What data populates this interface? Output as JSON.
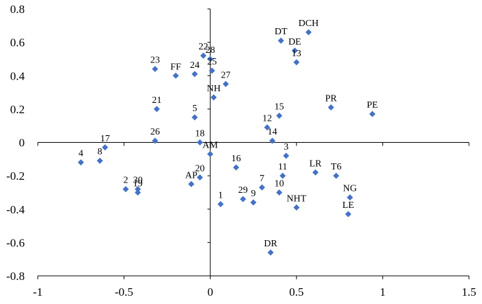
{
  "chart_data": {
    "type": "scatter",
    "title": "",
    "xlabel": "",
    "ylabel": "",
    "xlim": [
      -1,
      1.5
    ],
    "ylim": [
      -0.8,
      0.8
    ],
    "x_ticks": [
      -1,
      -0.5,
      0,
      0.5,
      1,
      1.5
    ],
    "x_tick_labels": [
      "-1",
      "-0.5",
      "0",
      "0.5",
      "1",
      "1.5"
    ],
    "y_ticks": [
      0.8,
      0.6,
      0.4,
      0.2,
      0,
      -0.2,
      -0.4,
      -0.6,
      -0.8
    ],
    "y_tick_labels": [
      "0.8",
      "0.6",
      "0.4",
      "0.2",
      "0",
      "-0.2",
      "-0.4",
      "-0.6",
      "-0.8"
    ],
    "grid": false,
    "legend": "none",
    "marker_color": "#4472C4",
    "points": [
      {
        "label": "DCH",
        "x": 0.57,
        "y": 0.66
      },
      {
        "label": "DT",
        "x": 0.41,
        "y": 0.61
      },
      {
        "label": "DE",
        "x": 0.49,
        "y": 0.55
      },
      {
        "label": "13",
        "x": 0.5,
        "y": 0.48
      },
      {
        "label": "22",
        "x": -0.04,
        "y": 0.52
      },
      {
        "label": "28",
        "x": 0.0,
        "y": 0.5
      },
      {
        "label": "24",
        "x": -0.09,
        "y": 0.41
      },
      {
        "label": "25",
        "x": 0.01,
        "y": 0.43
      },
      {
        "label": "23",
        "x": -0.32,
        "y": 0.44
      },
      {
        "label": "FF",
        "x": -0.2,
        "y": 0.4
      },
      {
        "label": "27",
        "x": 0.09,
        "y": 0.35
      },
      {
        "label": "NH",
        "x": 0.02,
        "y": 0.27
      },
      {
        "label": "21",
        "x": -0.31,
        "y": 0.2
      },
      {
        "label": "5",
        "x": -0.09,
        "y": 0.15
      },
      {
        "label": "15",
        "x": 0.4,
        "y": 0.16
      },
      {
        "label": "12",
        "x": 0.33,
        "y": 0.09
      },
      {
        "label": "PR",
        "x": 0.7,
        "y": 0.21
      },
      {
        "label": "PE",
        "x": 0.94,
        "y": 0.17
      },
      {
        "label": "17",
        "x": -0.61,
        "y": -0.03
      },
      {
        "label": "26",
        "x": -0.32,
        "y": 0.01
      },
      {
        "label": "18",
        "x": -0.06,
        "y": 0.0
      },
      {
        "label": "14",
        "x": 0.36,
        "y": 0.01
      },
      {
        "label": "AM",
        "x": 0.0,
        "y": -0.07
      },
      {
        "label": "3",
        "x": 0.44,
        "y": -0.08
      },
      {
        "label": "4",
        "x": -0.75,
        "y": -0.12
      },
      {
        "label": "8",
        "x": -0.64,
        "y": -0.11
      },
      {
        "label": "16",
        "x": 0.15,
        "y": -0.15
      },
      {
        "label": "11",
        "x": 0.42,
        "y": -0.2
      },
      {
        "label": "LR",
        "x": 0.61,
        "y": -0.18
      },
      {
        "label": "T6",
        "x": 0.73,
        "y": -0.2
      },
      {
        "label": "20",
        "x": -0.06,
        "y": -0.21
      },
      {
        "label": "AP",
        "x": -0.11,
        "y": -0.25
      },
      {
        "label": "7",
        "x": 0.3,
        "y": -0.27
      },
      {
        "label": "10",
        "x": 0.4,
        "y": -0.3
      },
      {
        "label": "2",
        "x": -0.49,
        "y": -0.28
      },
      {
        "label": "30",
        "x": -0.42,
        "y": -0.28
      },
      {
        "label": "19",
        "x": -0.42,
        "y": -0.3
      },
      {
        "label": "29",
        "x": 0.19,
        "y": -0.34
      },
      {
        "label": "9",
        "x": 0.25,
        "y": -0.36
      },
      {
        "label": "1",
        "x": 0.06,
        "y": -0.37
      },
      {
        "label": "NHT",
        "x": 0.5,
        "y": -0.39
      },
      {
        "label": "NG",
        "x": 0.81,
        "y": -0.33
      },
      {
        "label": "LE",
        "x": 0.8,
        "y": -0.43
      },
      {
        "label": "DR",
        "x": 0.35,
        "y": -0.66
      }
    ]
  }
}
